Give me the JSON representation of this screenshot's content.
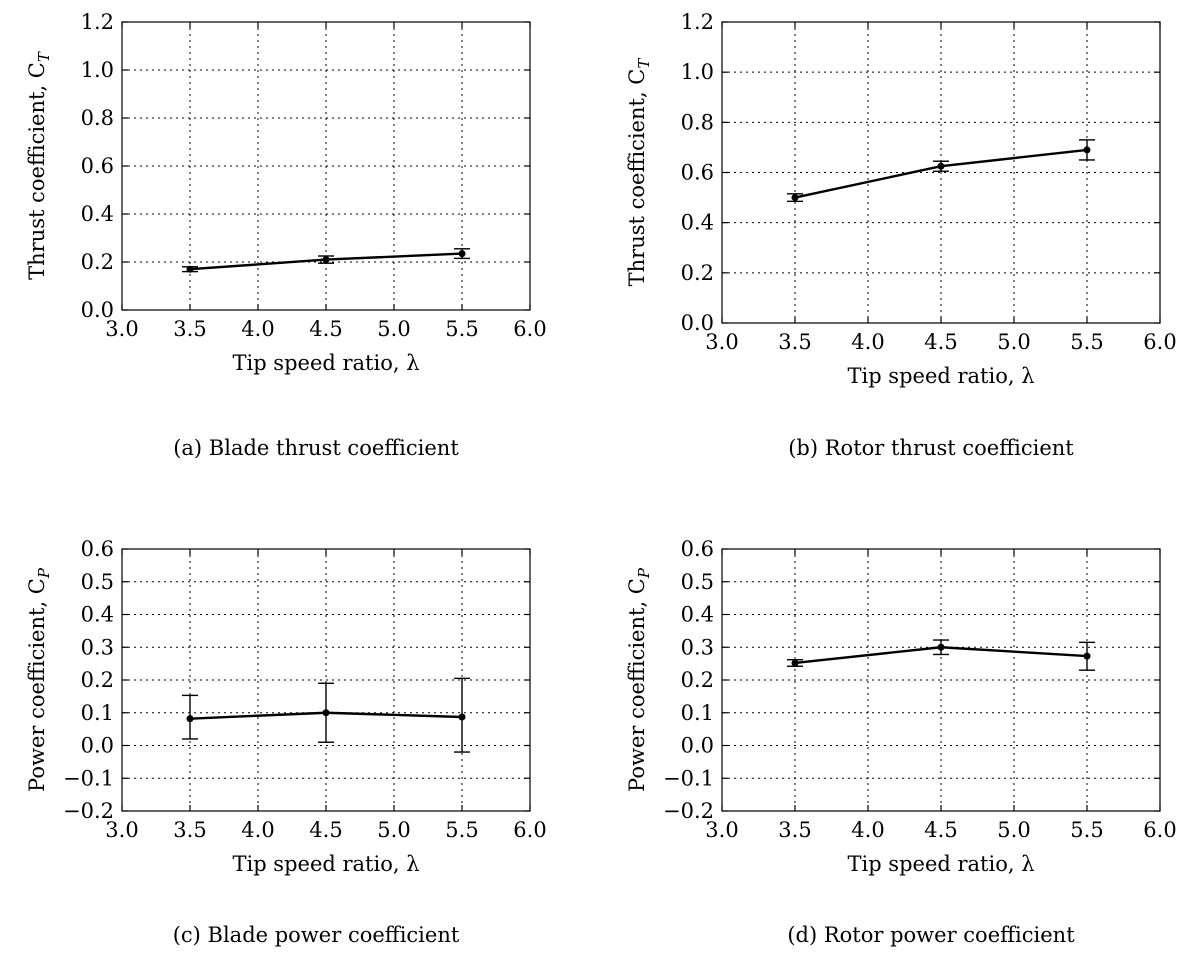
{
  "chart_data": [
    {
      "type": "line",
      "caption": "(a) Blade thrust coefficient",
      "xlabel": "Tip speed ratio, λ",
      "ylabel": "Thrust coefficient, C",
      "ylabel_sub": "T",
      "xlim": [
        3.0,
        6.0
      ],
      "ylim": [
        0.0,
        1.2
      ],
      "xticks": [
        "3.0",
        "3.5",
        "4.0",
        "4.5",
        "5.0",
        "5.5",
        "6.0"
      ],
      "yticks": [
        "0.0",
        "0.2",
        "0.4",
        "0.6",
        "0.8",
        "1.0",
        "1.2"
      ],
      "grid": true,
      "x": [
        3.5,
        4.5,
        5.5
      ],
      "series": [
        {
          "values": [
            0.17,
            0.21,
            0.235
          ],
          "err_low": [
            0.16,
            0.195,
            0.215
          ],
          "err_high": [
            0.18,
            0.225,
            0.255
          ]
        }
      ]
    },
    {
      "type": "line",
      "caption": "(b) Rotor thrust coefficient",
      "xlabel": "Tip speed ratio, λ",
      "ylabel": "Thrust coefficient, C",
      "ylabel_sub": "T",
      "xlim": [
        3.0,
        6.0
      ],
      "ylim": [
        0.0,
        1.2
      ],
      "xticks": [
        "3.0",
        "3.5",
        "4.0",
        "4.5",
        "5.0",
        "5.5",
        "6.0"
      ],
      "yticks": [
        "0.0",
        "0.2",
        "0.4",
        "0.6",
        "0.8",
        "1.0",
        "1.2"
      ],
      "grid": true,
      "x": [
        3.5,
        4.5,
        5.5
      ],
      "series": [
        {
          "values": [
            0.5,
            0.625,
            0.69
          ],
          "err_low": [
            0.485,
            0.605,
            0.65
          ],
          "err_high": [
            0.515,
            0.645,
            0.73
          ]
        }
      ]
    },
    {
      "type": "line",
      "caption": "(c) Blade power coefficient",
      "xlabel": "Tip speed ratio, λ",
      "ylabel": "Power coefficient, C",
      "ylabel_sub": "P",
      "xlim": [
        3.0,
        6.0
      ],
      "ylim": [
        -0.2,
        0.6
      ],
      "xticks": [
        "3.0",
        "3.5",
        "4.0",
        "4.5",
        "5.0",
        "5.5",
        "6.0"
      ],
      "yticks": [
        "−0.2",
        "−0.1",
        "0.0",
        "0.1",
        "0.2",
        "0.3",
        "0.4",
        "0.5",
        "0.6"
      ],
      "grid": true,
      "x": [
        3.5,
        4.5,
        5.5
      ],
      "series": [
        {
          "values": [
            0.082,
            0.1,
            0.087
          ],
          "err_low": [
            0.02,
            0.01,
            -0.02
          ],
          "err_high": [
            0.153,
            0.19,
            0.205
          ]
        }
      ]
    },
    {
      "type": "line",
      "caption": "(d) Rotor power coefficient",
      "xlabel": "Tip speed ratio, λ",
      "ylabel": "Power coefficient, C",
      "ylabel_sub": "P",
      "xlim": [
        3.0,
        6.0
      ],
      "ylim": [
        -0.2,
        0.6
      ],
      "xticks": [
        "3.0",
        "3.5",
        "4.0",
        "4.5",
        "5.0",
        "5.5",
        "6.0"
      ],
      "yticks": [
        "−0.2",
        "−0.1",
        "0.0",
        "0.1",
        "0.2",
        "0.3",
        "0.4",
        "0.5",
        "0.6"
      ],
      "grid": true,
      "x": [
        3.5,
        4.5,
        5.5
      ],
      "series": [
        {
          "values": [
            0.252,
            0.3,
            0.273
          ],
          "err_low": [
            0.242,
            0.278,
            0.23
          ],
          "err_high": [
            0.262,
            0.322,
            0.315
          ]
        }
      ]
    }
  ]
}
